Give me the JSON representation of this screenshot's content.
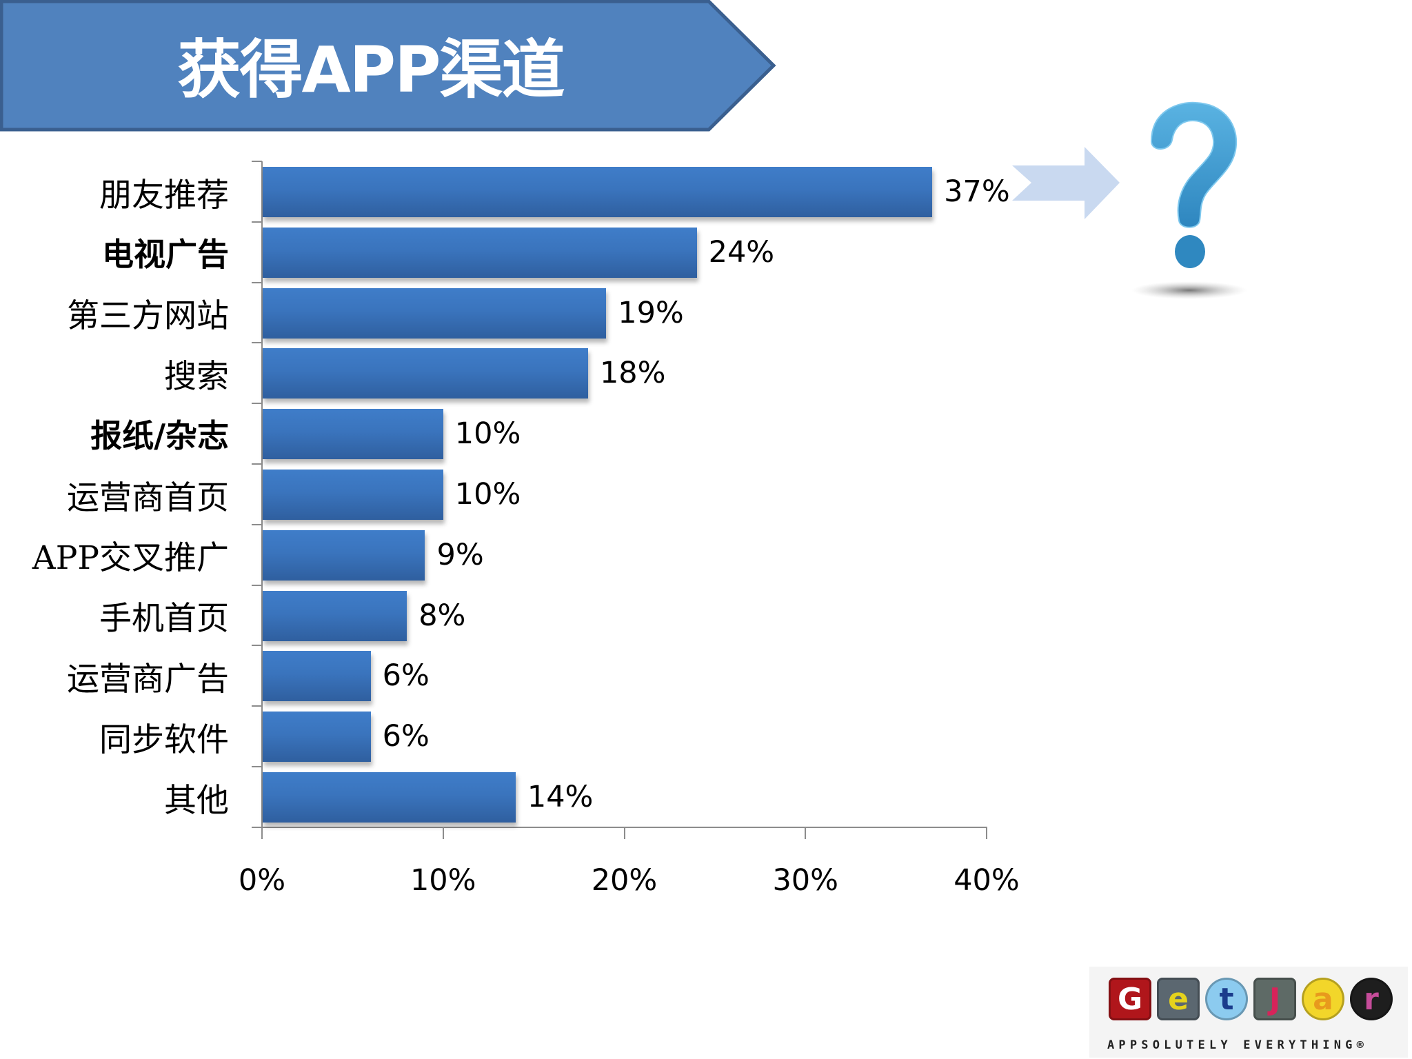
{
  "slide": {
    "title": "获得APP渠道",
    "banner_color": "#4F81BD",
    "banner_border_color": "#385D8A"
  },
  "chart_data": {
    "type": "bar",
    "orientation": "horizontal",
    "title": "获得APP渠道",
    "categories": [
      "朋友推荐",
      "电视广告",
      "第三方网站",
      "搜索",
      "报纸/杂志",
      "运营商首页",
      "APP交叉推广",
      "手机首页",
      "运营商广告",
      "同步软件",
      "其他"
    ],
    "values": [
      37,
      24,
      19,
      18,
      10,
      10,
      9,
      8,
      6,
      6,
      14
    ],
    "value_labels": [
      "37%",
      "24%",
      "19%",
      "18%",
      "10%",
      "10%",
      "9%",
      "8%",
      "6%",
      "6%",
      "14%"
    ],
    "bold_categories": [
      "电视广告",
      "报纸/杂志"
    ],
    "xlabel": "",
    "ylabel": "",
    "xlim": [
      0,
      40
    ],
    "x_ticks": [
      "0%",
      "10%",
      "20%",
      "30%",
      "40%"
    ],
    "grid": false,
    "legend": null,
    "bar_color": "#3A74BD"
  },
  "annotations": {
    "arrow": "right-arrow-to-question-mark",
    "arrow_color": "#C6D7EF",
    "question_mark": "?",
    "question_mark_color": "#3E97CF"
  },
  "logo": {
    "letters": [
      "G",
      "e",
      "t",
      "J",
      "a",
      "r"
    ],
    "tagline": "APPSOLUTELY EVERYTHING®"
  }
}
